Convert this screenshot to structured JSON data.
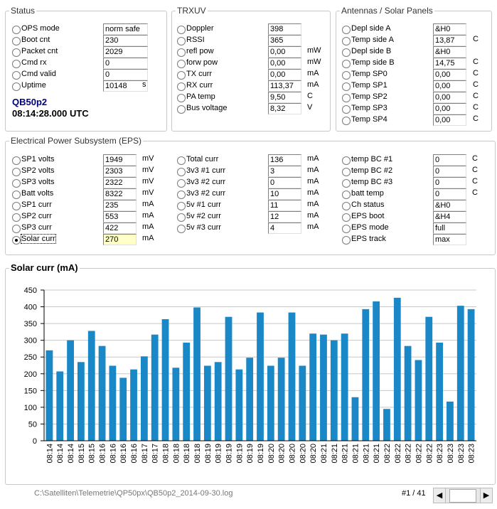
{
  "status": {
    "title": "Status",
    "rows": [
      {
        "label": "OPS mode",
        "value": "norm safe"
      },
      {
        "label": "Boot cnt",
        "value": "230"
      },
      {
        "label": "Packet cnt",
        "value": "2029"
      },
      {
        "label": "Cmd rx",
        "value": "0"
      },
      {
        "label": "Cmd valid",
        "value": "0"
      },
      {
        "label": "Uptime",
        "value": "10148",
        "unit": "s"
      }
    ],
    "satellite": "QB50p2",
    "time": "08:14:28.000 UTC"
  },
  "trxuv": {
    "title": "TRXUV",
    "rows": [
      {
        "label": "Doppler",
        "value": "398"
      },
      {
        "label": "RSSI",
        "value": "365"
      },
      {
        "label": "refl pow",
        "value": "0,00",
        "unit": "mW"
      },
      {
        "label": "forw pow",
        "value": "0,00",
        "unit": "mW"
      },
      {
        "label": "TX curr",
        "value": "0,00",
        "unit": "mA"
      },
      {
        "label": "RX curr",
        "value": "113,37",
        "unit": "mA"
      },
      {
        "label": "PA temp",
        "value": "9,50",
        "unit": "C"
      },
      {
        "label": "Bus voltage",
        "value": "8,32",
        "unit": "V"
      }
    ]
  },
  "antennas": {
    "title": "Antennas / Solar Panels",
    "rows": [
      {
        "label": "Depl side A",
        "value": "&H0"
      },
      {
        "label": "Temp side A",
        "value": "13,87",
        "unit": "C"
      },
      {
        "label": "Depl side B",
        "value": "&H0"
      },
      {
        "label": "Temp side B",
        "value": "14,75",
        "unit": "C"
      },
      {
        "label": "Temp SP0",
        "value": "0,00",
        "unit": "C"
      },
      {
        "label": "Temp SP1",
        "value": "0,00",
        "unit": "C"
      },
      {
        "label": "Temp SP2",
        "value": "0,00",
        "unit": "C"
      },
      {
        "label": "Temp SP3",
        "value": "0,00",
        "unit": "C"
      },
      {
        "label": "Temp SP4",
        "value": "0,00",
        "unit": "C"
      }
    ]
  },
  "eps": {
    "title": "Electrical Power Subsystem (EPS)",
    "columns": [
      [
        {
          "label": "SP1 volts",
          "value": "1949",
          "unit": "mV"
        },
        {
          "label": "SP2 volts",
          "value": "2303",
          "unit": "mV"
        },
        {
          "label": "SP3 volts",
          "value": "2322",
          "unit": "mV"
        },
        {
          "label": "Batt volts",
          "value": "8322",
          "unit": "mV"
        },
        {
          "label": "SP1 curr",
          "value": "235",
          "unit": "mA"
        },
        {
          "label": "SP2 curr",
          "value": "553",
          "unit": "mA"
        },
        {
          "label": "SP3 curr",
          "value": "422",
          "unit": "mA"
        },
        {
          "label": "Solar curr",
          "value": "270",
          "unit": "mA",
          "checked": true
        }
      ],
      [
        {
          "label": "Total curr",
          "value": "136",
          "unit": "mA"
        },
        {
          "label": "3v3 #1 curr",
          "value": "3",
          "unit": "mA"
        },
        {
          "label": "3v3 #2 curr",
          "value": "0",
          "unit": "mA"
        },
        {
          "label": "3v3 #2 curr",
          "value": "10",
          "unit": "mA"
        },
        {
          "label": "5v #1 curr",
          "value": "11",
          "unit": "mA"
        },
        {
          "label": "5v #2 curr",
          "value": "12",
          "unit": "mA"
        },
        {
          "label": "5v #3 curr",
          "value": "4",
          "unit": "mA"
        }
      ],
      [
        {
          "label": "temp BC #1",
          "value": "0",
          "unit": "C"
        },
        {
          "label": "temp BC #2",
          "value": "0",
          "unit": "C"
        },
        {
          "label": "temp BC #3",
          "value": "0",
          "unit": "C"
        },
        {
          "label": "batt temp",
          "value": "0",
          "unit": "C"
        },
        {
          "label": "Ch status",
          "value": "&H0"
        },
        {
          "label": "EPS boot",
          "value": "&H4"
        },
        {
          "label": "EPS mode",
          "value": "full"
        },
        {
          "label": "EPS track",
          "value": "max pow"
        }
      ]
    ]
  },
  "chart_data": {
    "type": "bar",
    "title": "Solar curr (mA)",
    "color": "#1a87c6",
    "grid": true,
    "categories": [
      "08:14",
      "08:14",
      "08:14",
      "08:15",
      "08:15",
      "08:16",
      "08:16",
      "08:16",
      "08:16",
      "08:17",
      "08:17",
      "08:18",
      "08:18",
      "08:18",
      "08:18",
      "08:19",
      "08:19",
      "08:19",
      "08:19",
      "08:19",
      "08:19",
      "08:20",
      "08:20",
      "08:20",
      "08:20",
      "08:20",
      "08:21",
      "08:21",
      "08:21",
      "08:21",
      "08:21",
      "08:21",
      "08:22",
      "08:22",
      "08:22",
      "08:22",
      "08:22",
      "08:23",
      "08:23",
      "08:23",
      "08:23"
    ],
    "values": [
      270,
      207,
      300,
      235,
      328,
      283,
      224,
      188,
      213,
      252,
      317,
      363,
      218,
      293,
      398,
      224,
      235,
      370,
      213,
      248,
      383,
      224,
      248,
      383,
      224,
      320,
      317,
      300,
      320,
      130,
      393,
      416,
      95,
      427,
      283,
      241,
      370,
      293,
      117,
      403,
      393
    ],
    "ylim": [
      0,
      450
    ],
    "yticks": [
      0,
      50,
      100,
      150,
      200,
      250,
      300,
      350,
      400,
      450
    ]
  },
  "footer": {
    "path": "C:\\Satelliten\\Telemetrie\\QP50px\\QB50p2_2014-09-30.log",
    "record": "#1 / 41"
  }
}
